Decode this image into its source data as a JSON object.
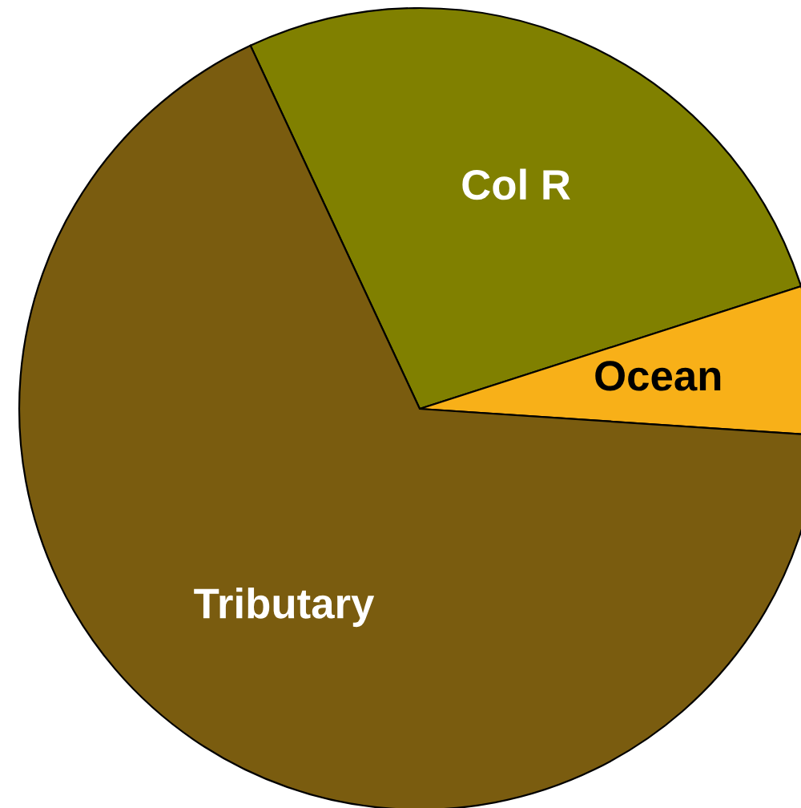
{
  "chart_data": {
    "type": "pie",
    "categories": [
      "Col R",
      "Ocean",
      "Tributary"
    ],
    "values": [
      27,
      6,
      67
    ],
    "colors": [
      "#808000",
      "#f8b018",
      "#7a5c0f"
    ]
  }
}
